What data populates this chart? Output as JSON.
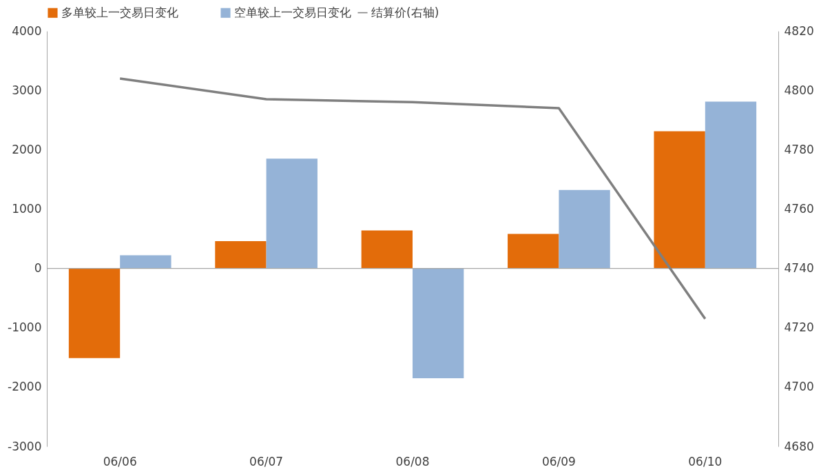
{
  "chart_data": {
    "type": "bar",
    "categories": [
      "06/06",
      "06/07",
      "06/08",
      "06/09",
      "06/10"
    ],
    "series": [
      {
        "name": "多单较上一交易日变化",
        "color": "#e36c0a",
        "values": [
          -1510,
          460,
          640,
          580,
          2310
        ]
      },
      {
        "name": "空单较上一交易日变化",
        "color": "#95b3d7",
        "values": [
          220,
          1850,
          -1850,
          1320,
          2810
        ]
      },
      {
        "name": "结算价(右轴)",
        "color": "#7f7f7f",
        "type": "line",
        "axis": "y2",
        "values": [
          4804,
          4797,
          4796,
          4794,
          4723
        ]
      }
    ],
    "ylim": [
      -3000,
      4000
    ],
    "yticks": [
      -3000,
      -2000,
      -1000,
      0,
      1000,
      2000,
      3000,
      4000
    ],
    "y2lim": [
      4680,
      4820
    ],
    "y2ticks": [
      4680,
      4700,
      4720,
      4740,
      4760,
      4780,
      4800,
      4820
    ],
    "ref_lines": [
      {
        "axis": "y",
        "value": 0,
        "color": "#a6a6a6"
      }
    ],
    "legend": "top",
    "grid": false,
    "marker": "none",
    "line_style": "solid"
  }
}
